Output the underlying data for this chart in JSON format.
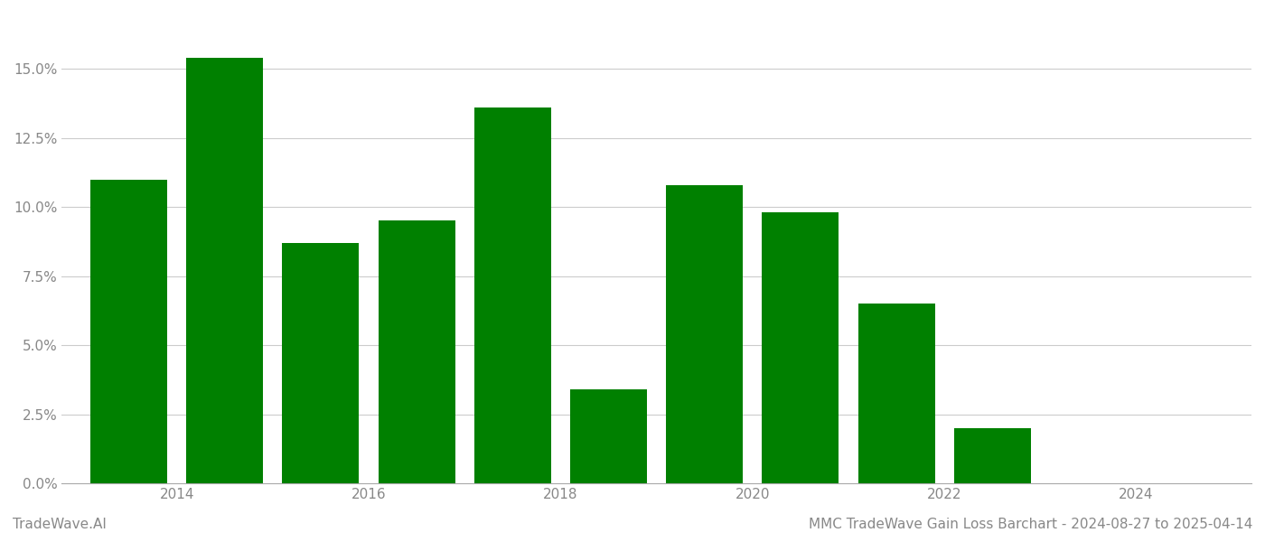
{
  "bar_positions": [
    2013.5,
    2014.5,
    2015.5,
    2016.5,
    2017.5,
    2018.5,
    2019.5,
    2020.5,
    2021.5,
    2022.5,
    2023.5
  ],
  "values": [
    0.11,
    0.154,
    0.087,
    0.095,
    0.136,
    0.034,
    0.108,
    0.098,
    0.065,
    0.02,
    0.0
  ],
  "bar_color": "#008000",
  "background_color": "#ffffff",
  "grid_color": "#cccccc",
  "ylabel_color": "#888888",
  "xlabel_color": "#888888",
  "title_text": "MMC TradeWave Gain Loss Barchart - 2024-08-27 to 2025-04-14",
  "watermark_text": "TradeWave.AI",
  "ylim": [
    0,
    0.17
  ],
  "yticks": [
    0.0,
    0.025,
    0.05,
    0.075,
    0.1,
    0.125,
    0.15
  ],
  "xtick_labels": [
    "2014",
    "2016",
    "2018",
    "2020",
    "2022",
    "2024"
  ],
  "xtick_positions": [
    2014.0,
    2016.0,
    2018.0,
    2020.0,
    2022.0,
    2024.0
  ],
  "xlim": [
    2012.8,
    2025.2
  ],
  "bar_width": 0.8,
  "title_fontsize": 11,
  "tick_fontsize": 11,
  "watermark_fontsize": 11
}
